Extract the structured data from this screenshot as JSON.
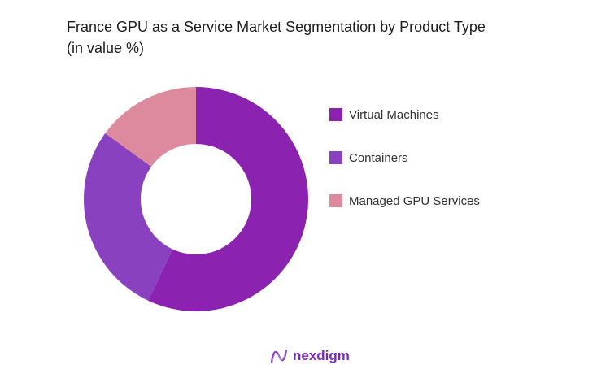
{
  "chart_data": {
    "type": "pie",
    "donut": true,
    "title": "France GPU as a Service Market Segmentation by Product Type",
    "subtitle": "(in value %)",
    "categories": [
      "Virtual Machines",
      "Containers",
      "Managed GPU Services"
    ],
    "values": [
      57,
      28,
      15
    ],
    "colors": [
      "#8b23b0",
      "#8a41c0",
      "#de8a9e"
    ],
    "legend_position": "right"
  },
  "brand": {
    "name": "nexdigm",
    "color": "#7a2bbd"
  }
}
